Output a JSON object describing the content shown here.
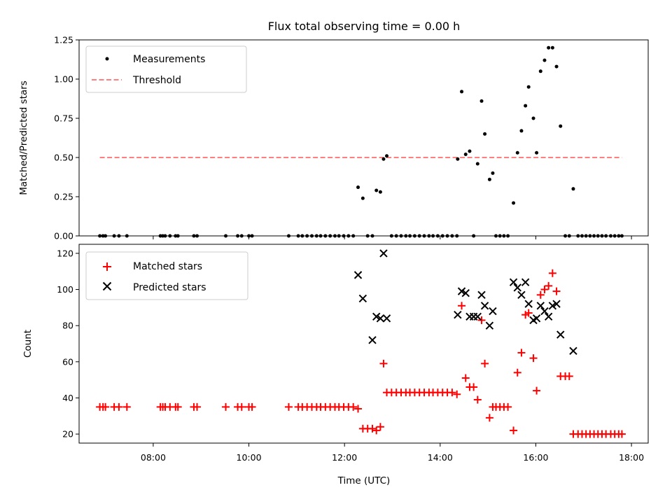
{
  "chart_data": [
    {
      "type": "scatter",
      "title": "Flux total observing time = 0.00 h",
      "xlabel": "",
      "ylabel": "Matched/Predicted stars",
      "ylim": [
        0,
        1.25
      ],
      "xlim": [
        "06:27",
        "18:21"
      ],
      "yticks": [
        "0.00",
        "0.25",
        "0.50",
        "0.75",
        "1.00",
        "1.25"
      ],
      "legend_position": "top-left",
      "grid": false,
      "colors": {
        "measurements": "#000000",
        "threshold": "#ff7f7f"
      },
      "series": [
        {
          "name": "Measurements",
          "marker": "dot",
          "points": [
            [
              "06:53",
              0
            ],
            [
              "06:57",
              0
            ],
            [
              "07:00",
              0
            ],
            [
              "07:11",
              0
            ],
            [
              "07:17",
              0
            ],
            [
              "07:27",
              0
            ],
            [
              "08:09",
              0
            ],
            [
              "08:12",
              0
            ],
            [
              "08:15",
              0
            ],
            [
              "08:21",
              0
            ],
            [
              "08:28",
              0
            ],
            [
              "08:31",
              0
            ],
            [
              "08:51",
              0
            ],
            [
              "08:55",
              0
            ],
            [
              "09:31",
              0
            ],
            [
              "09:46",
              0
            ],
            [
              "09:51",
              0
            ],
            [
              "10:00",
              0
            ],
            [
              "10:04",
              0
            ],
            [
              "10:50",
              0
            ],
            [
              "11:02",
              0
            ],
            [
              "11:07",
              0
            ],
            [
              "11:13",
              0
            ],
            [
              "11:19",
              0
            ],
            [
              "11:25",
              0
            ],
            [
              "11:30",
              0
            ],
            [
              "11:36",
              0
            ],
            [
              "11:42",
              0
            ],
            [
              "11:48",
              0
            ],
            [
              "11:53",
              0
            ],
            [
              "11:59",
              0
            ],
            [
              "12:05",
              0
            ],
            [
              "12:11",
              0
            ],
            [
              "12:17",
              0.31
            ],
            [
              "12:23",
              0.24
            ],
            [
              "12:29",
              0
            ],
            [
              "12:35",
              0
            ],
            [
              "12:40",
              0.29
            ],
            [
              "12:45",
              0.28
            ],
            [
              "12:49",
              0.49
            ],
            [
              "12:53",
              0.51
            ],
            [
              "12:59",
              0
            ],
            [
              "13:05",
              0
            ],
            [
              "13:11",
              0
            ],
            [
              "13:17",
              0
            ],
            [
              "13:22",
              0
            ],
            [
              "13:28",
              0
            ],
            [
              "13:34",
              0
            ],
            [
              "13:40",
              0
            ],
            [
              "13:46",
              0
            ],
            [
              "13:51",
              0
            ],
            [
              "13:57",
              0
            ],
            [
              "14:03",
              0
            ],
            [
              "14:09",
              0
            ],
            [
              "14:15",
              0
            ],
            [
              "14:21",
              0
            ],
            [
              "14:22",
              0.49
            ],
            [
              "14:27",
              0.92
            ],
            [
              "14:32",
              0.52
            ],
            [
              "14:37",
              0.54
            ],
            [
              "14:42",
              0
            ],
            [
              "14:47",
              0.46
            ],
            [
              "14:52",
              0.86
            ],
            [
              "14:56",
              0.65
            ],
            [
              "15:02",
              0.36
            ],
            [
              "15:06",
              0.4
            ],
            [
              "15:10",
              0
            ],
            [
              "15:15",
              0
            ],
            [
              "15:20",
              0
            ],
            [
              "15:25",
              0
            ],
            [
              "15:32",
              0.21
            ],
            [
              "15:37",
              0.53
            ],
            [
              "15:42",
              0.67
            ],
            [
              "15:47",
              0.83
            ],
            [
              "15:51",
              0.95
            ],
            [
              "15:57",
              0.75
            ],
            [
              "16:01",
              0.53
            ],
            [
              "16:06",
              1.05
            ],
            [
              "16:11",
              1.12
            ],
            [
              "16:16",
              1.2
            ],
            [
              "16:21",
              1.2
            ],
            [
              "16:26",
              1.08
            ],
            [
              "16:31",
              0.7
            ],
            [
              "16:37",
              0
            ],
            [
              "16:42",
              0
            ],
            [
              "16:47",
              0.3
            ],
            [
              "16:53",
              0
            ],
            [
              "16:58",
              0
            ],
            [
              "17:03",
              0
            ],
            [
              "17:08",
              0
            ],
            [
              "17:13",
              0
            ],
            [
              "17:18",
              0
            ],
            [
              "17:23",
              0
            ],
            [
              "17:28",
              0
            ],
            [
              "17:34",
              0
            ],
            [
              "17:39",
              0
            ],
            [
              "17:44",
              0
            ],
            [
              "17:48",
              0
            ]
          ]
        },
        {
          "name": "Threshold",
          "line_style": "dashed",
          "points": [
            [
              "06:53",
              0.5
            ],
            [
              "17:48",
              0.5
            ]
          ]
        }
      ]
    },
    {
      "type": "scatter",
      "title": "",
      "xlabel": "Time (UTC)",
      "ylabel": "Count",
      "ylim": [
        15,
        125
      ],
      "xlim": [
        "06:27",
        "18:21"
      ],
      "yticks": [
        "20",
        "40",
        "60",
        "80",
        "100",
        "120"
      ],
      "xticks": [
        "08:00",
        "10:00",
        "12:00",
        "14:00",
        "16:00",
        "18:00"
      ],
      "legend_position": "top-left",
      "grid": false,
      "colors": {
        "matched": "#ff0000",
        "predicted": "#000000"
      },
      "series": [
        {
          "name": "Matched stars",
          "marker": "plus",
          "points": [
            [
              "06:53",
              35
            ],
            [
              "06:57",
              35
            ],
            [
              "07:00",
              35
            ],
            [
              "07:11",
              35
            ],
            [
              "07:17",
              35
            ],
            [
              "07:27",
              35
            ],
            [
              "08:09",
              35
            ],
            [
              "08:12",
              35
            ],
            [
              "08:15",
              35
            ],
            [
              "08:21",
              35
            ],
            [
              "08:28",
              35
            ],
            [
              "08:31",
              35
            ],
            [
              "08:51",
              35
            ],
            [
              "08:55",
              35
            ],
            [
              "09:31",
              35
            ],
            [
              "09:46",
              35
            ],
            [
              "09:51",
              35
            ],
            [
              "10:00",
              35
            ],
            [
              "10:04",
              35
            ],
            [
              "10:50",
              35
            ],
            [
              "11:02",
              35
            ],
            [
              "11:07",
              35
            ],
            [
              "11:13",
              35
            ],
            [
              "11:19",
              35
            ],
            [
              "11:25",
              35
            ],
            [
              "11:30",
              35
            ],
            [
              "11:36",
              35
            ],
            [
              "11:42",
              35
            ],
            [
              "11:48",
              35
            ],
            [
              "11:53",
              35
            ],
            [
              "11:59",
              35
            ],
            [
              "12:05",
              35
            ],
            [
              "12:11",
              35
            ],
            [
              "12:17",
              34
            ],
            [
              "12:23",
              23
            ],
            [
              "12:29",
              23
            ],
            [
              "12:35",
              23
            ],
            [
              "12:40",
              22
            ],
            [
              "12:45",
              24
            ],
            [
              "12:49",
              59
            ],
            [
              "12:53",
              43
            ],
            [
              "12:59",
              43
            ],
            [
              "13:05",
              43
            ],
            [
              "13:11",
              43
            ],
            [
              "13:17",
              43
            ],
            [
              "13:22",
              43
            ],
            [
              "13:28",
              43
            ],
            [
              "13:34",
              43
            ],
            [
              "13:40",
              43
            ],
            [
              "13:46",
              43
            ],
            [
              "13:51",
              43
            ],
            [
              "13:57",
              43
            ],
            [
              "14:03",
              43
            ],
            [
              "14:09",
              43
            ],
            [
              "14:15",
              43
            ],
            [
              "14:21",
              42
            ],
            [
              "14:27",
              91
            ],
            [
              "14:32",
              51
            ],
            [
              "14:37",
              46
            ],
            [
              "14:42",
              46
            ],
            [
              "14:47",
              39
            ],
            [
              "14:52",
              83
            ],
            [
              "14:56",
              59
            ],
            [
              "15:02",
              29
            ],
            [
              "15:06",
              35
            ],
            [
              "15:10",
              35
            ],
            [
              "15:15",
              35
            ],
            [
              "15:20",
              35
            ],
            [
              "15:25",
              35
            ],
            [
              "15:32",
              22
            ],
            [
              "15:37",
              54
            ],
            [
              "15:42",
              65
            ],
            [
              "15:47",
              86
            ],
            [
              "15:51",
              87
            ],
            [
              "15:57",
              62
            ],
            [
              "16:01",
              44
            ],
            [
              "16:06",
              97
            ],
            [
              "16:11",
              100
            ],
            [
              "16:16",
              102
            ],
            [
              "16:21",
              109
            ],
            [
              "16:26",
              99
            ],
            [
              "16:31",
              52
            ],
            [
              "16:37",
              52
            ],
            [
              "16:42",
              52
            ],
            [
              "16:47",
              20
            ],
            [
              "16:53",
              20
            ],
            [
              "16:58",
              20
            ],
            [
              "17:03",
              20
            ],
            [
              "17:08",
              20
            ],
            [
              "17:13",
              20
            ],
            [
              "17:18",
              20
            ],
            [
              "17:23",
              20
            ],
            [
              "17:28",
              20
            ],
            [
              "17:34",
              20
            ],
            [
              "17:39",
              20
            ],
            [
              "17:44",
              20
            ],
            [
              "17:48",
              20
            ]
          ]
        },
        {
          "name": "Predicted stars",
          "marker": "x",
          "points": [
            [
              "12:17",
              108
            ],
            [
              "12:23",
              95
            ],
            [
              "12:35",
              72
            ],
            [
              "12:40",
              85
            ],
            [
              "12:45",
              84
            ],
            [
              "12:49",
              120
            ],
            [
              "12:53",
              84
            ],
            [
              "14:22",
              86
            ],
            [
              "14:27",
              99
            ],
            [
              "14:32",
              98
            ],
            [
              "14:37",
              85
            ],
            [
              "14:42",
              85
            ],
            [
              "14:47",
              85
            ],
            [
              "14:52",
              97
            ],
            [
              "14:56",
              91
            ],
            [
              "15:02",
              80
            ],
            [
              "15:06",
              88
            ],
            [
              "15:32",
              104
            ],
            [
              "15:37",
              101
            ],
            [
              "15:42",
              97
            ],
            [
              "15:47",
              104
            ],
            [
              "15:51",
              92
            ],
            [
              "15:57",
              83
            ],
            [
              "16:01",
              84
            ],
            [
              "16:06",
              91
            ],
            [
              "16:11",
              88
            ],
            [
              "16:16",
              85
            ],
            [
              "16:21",
              91
            ],
            [
              "16:26",
              92
            ],
            [
              "16:31",
              75
            ],
            [
              "16:47",
              66
            ]
          ]
        }
      ]
    }
  ]
}
